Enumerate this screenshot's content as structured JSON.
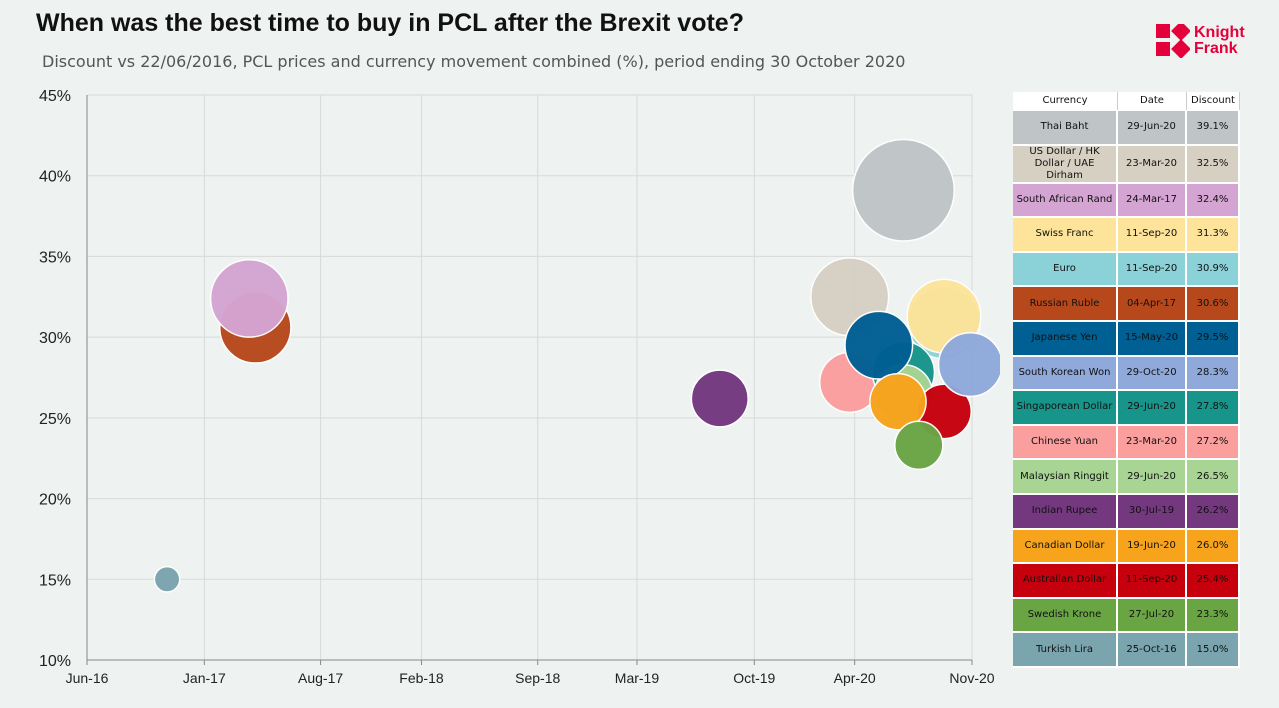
{
  "title": "When was the best time to buy in PCL after the Brexit vote?",
  "subtitle": "Discount vs 22/06/2016, PCL prices and currency movement combined (%), period ending 30 October 2020",
  "logo": {
    "line1": "Knight",
    "line2": "Frank",
    "color": "#e4003b"
  },
  "table": {
    "headers": [
      "Currency",
      "Date",
      "Discount"
    ]
  },
  "chart_data": {
    "type": "bubble",
    "x_axis": {
      "ticks": [
        {
          "date": "2016-06-01",
          "label": "Jun-16"
        },
        {
          "date": "2017-01-01",
          "label": "Jan-17"
        },
        {
          "date": "2017-08-01",
          "label": "Aug-17"
        },
        {
          "date": "2018-02-01",
          "label": "Feb-18"
        },
        {
          "date": "2018-09-01",
          "label": "Sep-18"
        },
        {
          "date": "2019-03-01",
          "label": "Mar-19"
        },
        {
          "date": "2019-10-01",
          "label": "Oct-19"
        },
        {
          "date": "2020-04-01",
          "label": "Apr-20"
        },
        {
          "date": "2020-11-01",
          "label": "Nov-20"
        }
      ],
      "range": [
        "2016-06-01",
        "2020-11-01"
      ]
    },
    "y_axis": {
      "min": 10,
      "max": 45,
      "step": 5,
      "unit": "%"
    },
    "grid": true,
    "series": [
      {
        "currency": "Thai Baht",
        "date": "2020-06-29",
        "date_label": "29-Jun-20",
        "discount": 39.1,
        "discount_label": "39.1%",
        "color": "#bfc4c7"
      },
      {
        "currency": "US Dollar / HK Dollar / UAE Dirham",
        "date": "2020-03-23",
        "date_label": "23-Mar-20",
        "discount": 32.5,
        "discount_label": "32.5%",
        "color": "#d6d0c3"
      },
      {
        "currency": "South African Rand",
        "date": "2017-03-24",
        "date_label": "24-Mar-17",
        "discount": 32.4,
        "discount_label": "32.4%",
        "color": "#d4a4d2"
      },
      {
        "currency": "Swiss Franc",
        "date": "2020-09-11",
        "date_label": "11-Sep-20",
        "discount": 31.3,
        "discount_label": "31.3%",
        "color": "#fde49a"
      },
      {
        "currency": "Euro",
        "date": "2020-09-11",
        "date_label": "11-Sep-20",
        "discount": 30.9,
        "discount_label": "30.9%",
        "color": "#8ad2d8"
      },
      {
        "currency": "Russian Ruble",
        "date": "2017-04-04",
        "date_label": "04-Apr-17",
        "discount": 30.6,
        "discount_label": "30.6%",
        "color": "#b7481c"
      },
      {
        "currency": "Japanese Yen",
        "date": "2020-05-15",
        "date_label": "15-May-20",
        "discount": 29.5,
        "discount_label": "29.5%",
        "color": "#005f93"
      },
      {
        "currency": "South Korean Won",
        "date": "2020-10-29",
        "date_label": "29-Oct-20",
        "discount": 28.3,
        "discount_label": "28.3%",
        "color": "#8fa9db"
      },
      {
        "currency": "Singaporean Dollar",
        "date": "2020-06-29",
        "date_label": "29-Jun-20",
        "discount": 27.8,
        "discount_label": "27.8%",
        "color": "#17958b"
      },
      {
        "currency": "Chinese Yuan",
        "date": "2020-03-23",
        "date_label": "23-Mar-20",
        "discount": 27.2,
        "discount_label": "27.2%",
        "color": "#fb9e9e"
      },
      {
        "currency": "Malaysian Ringgit",
        "date": "2020-06-29",
        "date_label": "29-Jun-20",
        "discount": 26.5,
        "discount_label": "26.5%",
        "color": "#a8d494"
      },
      {
        "currency": "Indian Rupee",
        "date": "2019-07-30",
        "date_label": "30-Jul-19",
        "discount": 26.2,
        "discount_label": "26.2%",
        "color": "#74387f"
      },
      {
        "currency": "Canadian Dollar",
        "date": "2020-06-19",
        "date_label": "19-Jun-20",
        "discount": 26.0,
        "discount_label": "26.0%",
        "color": "#f7a31c"
      },
      {
        "currency": "Australian Dollar",
        "date": "2020-09-11",
        "date_label": "11-Sep-20",
        "discount": 25.4,
        "discount_label": "25.4%",
        "color": "#c6000c"
      },
      {
        "currency": "Swedish Krone",
        "date": "2020-07-27",
        "date_label": "27-Jul-20",
        "discount": 23.3,
        "discount_label": "23.3%",
        "color": "#6aa544"
      },
      {
        "currency": "Turkish Lira",
        "date": "2016-10-25",
        "date_label": "25-Oct-16",
        "discount": 15.0,
        "discount_label": "15.0%",
        "color": "#7aa4ae"
      }
    ]
  }
}
